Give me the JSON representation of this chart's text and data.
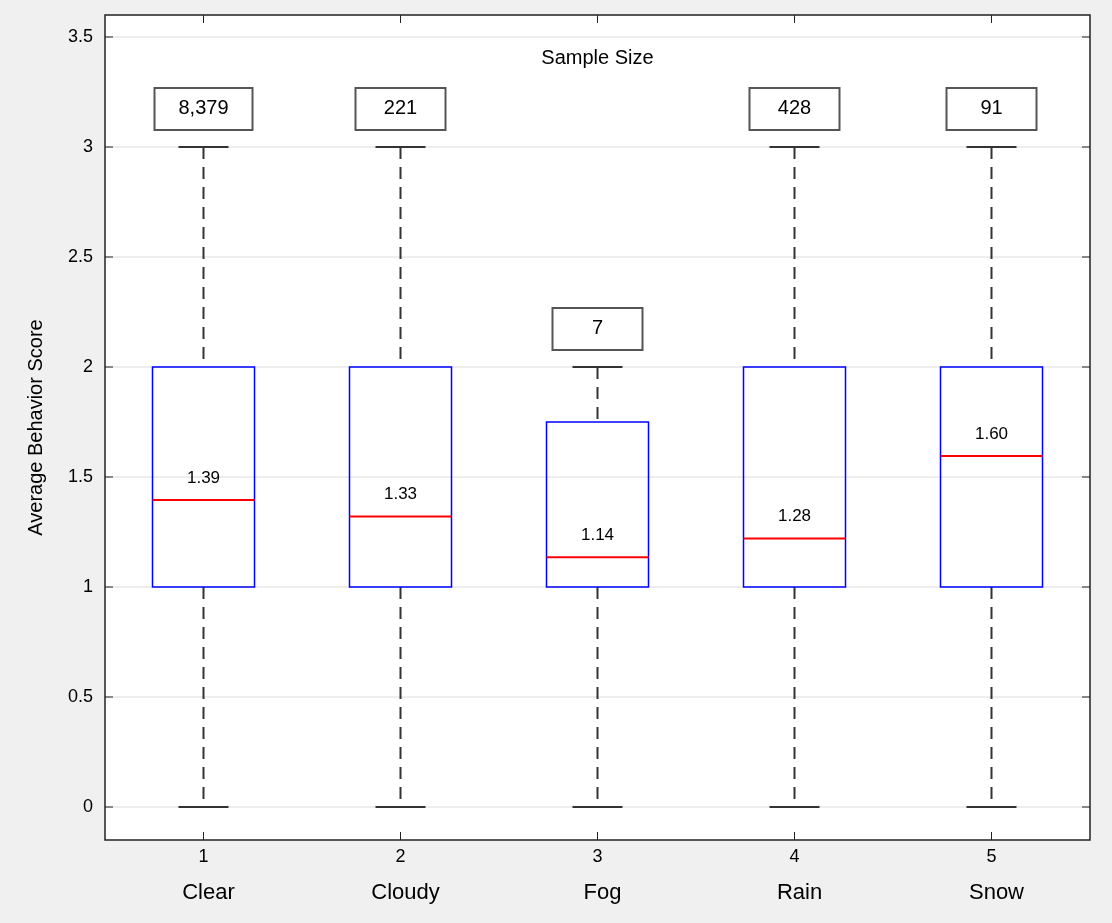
{
  "chart_data": {
    "type": "box",
    "ylabel": "Average Behavior Score",
    "categories": [
      "1\nClear",
      "2\nCloudy",
      "3\nFog",
      "4\nRain",
      "5\nSnow"
    ],
    "color": "#0000ff",
    "boxes": [
      {
        "low": 0,
        "q1": 1,
        "median": 1.395,
        "q3": 2,
        "high": 3
      },
      {
        "low": 0,
        "q1": 1,
        "median": 1.32,
        "q3": 2,
        "high": 3
      },
      {
        "low": 0,
        "q1": 1,
        "median": 1.135,
        "q3": 1.75,
        "high": 2
      },
      {
        "low": 0,
        "q1": 1,
        "median": 1.22,
        "q3": 2,
        "high": 3
      },
      {
        "low": 0,
        "q1": 1,
        "median": 1.595,
        "q3": 2,
        "high": 3
      }
    ],
    "ylim": [
      -0.15,
      3.6
    ],
    "yticks": [
      0,
      0.5,
      1,
      1.5,
      2,
      2.5,
      3,
      3.5
    ],
    "grid": "y",
    "annotations": [
      "Sample Size",
      "8,379",
      "221",
      "7",
      "428",
      "91",
      "1.39",
      "1.33",
      "1.14",
      "1.28",
      "1.60"
    ]
  }
}
